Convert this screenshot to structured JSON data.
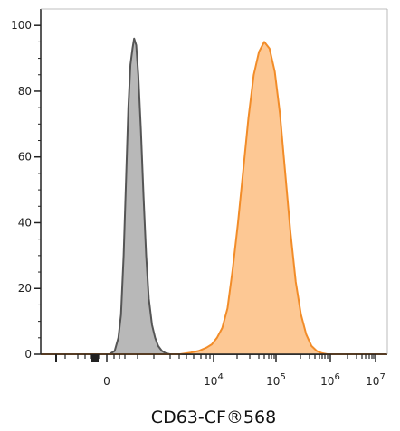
{
  "chart_data": {
    "type": "area",
    "title": "",
    "xlabel": "CD63-CF®568",
    "ylabel": "",
    "ylim": [
      0,
      105
    ],
    "x_scale": "biexponential (linear near 0, log above)",
    "x_tick_labels": [
      {
        "pos": 0,
        "base": "0",
        "exp": ""
      },
      {
        "pos": 4,
        "base": "10",
        "exp": "4"
      },
      {
        "pos": 5,
        "base": "10",
        "exp": "5"
      },
      {
        "pos": 6,
        "base": "10",
        "exp": "6"
      },
      {
        "pos": 7,
        "base": "10",
        "exp": "7"
      }
    ],
    "y_ticks": [
      0,
      20,
      40,
      60,
      80,
      100
    ],
    "grid": false,
    "legend": "none",
    "series": [
      {
        "color": "#555555",
        "fill": "#b8b8b8",
        "points": [
          [
            -1.95,
            0
          ],
          [
            0.05,
            0
          ],
          [
            0.15,
            1
          ],
          [
            0.22,
            5
          ],
          [
            0.27,
            12
          ],
          [
            0.32,
            30
          ],
          [
            0.37,
            55
          ],
          [
            0.41,
            75
          ],
          [
            0.45,
            88
          ],
          [
            0.49,
            93
          ],
          [
            0.52,
            96
          ],
          [
            0.56,
            94
          ],
          [
            0.6,
            85
          ],
          [
            0.65,
            68
          ],
          [
            0.7,
            48
          ],
          [
            0.75,
            30
          ],
          [
            0.8,
            17
          ],
          [
            0.86,
            9
          ],
          [
            0.92,
            5
          ],
          [
            0.98,
            2.5
          ],
          [
            1.05,
            1
          ],
          [
            1.12,
            0.3
          ],
          [
            1.2,
            0
          ],
          [
            7.0,
            0
          ]
        ]
      },
      {
        "color": "#f28c28",
        "fill": "#fdc894",
        "points": [
          [
            -1.95,
            0
          ],
          [
            1.4,
            0
          ],
          [
            1.6,
            0.5
          ],
          [
            1.75,
            1
          ],
          [
            1.9,
            2
          ],
          [
            2.0,
            3
          ],
          [
            2.1,
            5
          ],
          [
            2.2,
            8
          ],
          [
            2.3,
            14
          ],
          [
            2.4,
            26
          ],
          [
            2.5,
            40
          ],
          [
            2.6,
            56
          ],
          [
            2.7,
            72
          ],
          [
            2.8,
            85
          ],
          [
            2.9,
            92
          ],
          [
            3.0,
            95
          ],
          [
            3.1,
            93
          ],
          [
            3.2,
            86
          ],
          [
            3.3,
            73
          ],
          [
            3.4,
            55
          ],
          [
            3.5,
            37
          ],
          [
            3.6,
            22
          ],
          [
            3.7,
            12
          ],
          [
            3.8,
            6
          ],
          [
            3.9,
            2.5
          ],
          [
            4.0,
            1
          ],
          [
            4.1,
            0.3
          ],
          [
            4.2,
            0
          ],
          [
            7.0,
            0
          ]
        ]
      }
    ]
  }
}
